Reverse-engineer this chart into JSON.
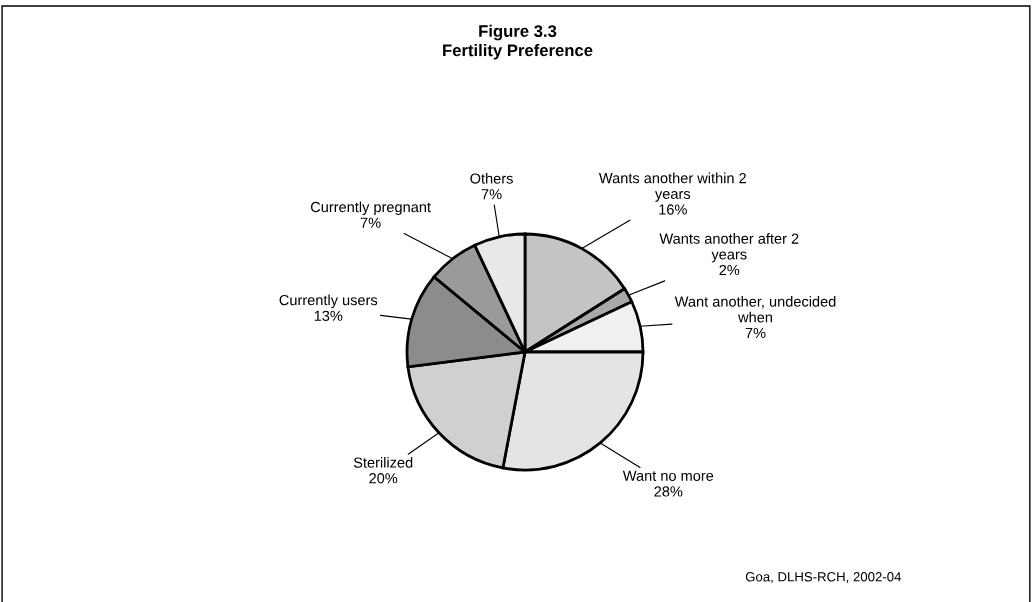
{
  "chart_data": {
    "type": "pie",
    "title": "Figure 3.3\nFertility Preference",
    "categories": [
      "Wants another within 2 years",
      "Wants another after 2 years",
      "Want another, undecided when",
      "Want no more",
      "Sterilized",
      "Currently users",
      "Currently pregnant",
      "Others"
    ],
    "values": [
      16,
      2,
      7,
      28,
      20,
      13,
      7,
      7
    ],
    "value_labels": [
      "16%",
      "2%",
      "7%",
      "28%",
      "20%",
      "13%",
      "7%",
      "7%"
    ],
    "colors": [
      "#c4c4c4",
      "#a8a8a8",
      "#f0f0f0",
      "#e4e4e4",
      "#d0d0d0",
      "#8c8c8c",
      "#9a9a9a",
      "#e8e8e8"
    ],
    "annotations": [
      "Goa, DLHS-RCH, 2002-04"
    ]
  }
}
